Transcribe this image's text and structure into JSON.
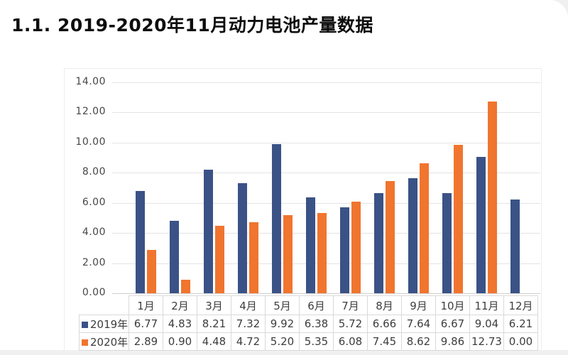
{
  "page": {
    "section_title": "1.1. 2019-2020年11月动力电池产量数据"
  },
  "chart_data": {
    "type": "bar",
    "title": "1.1. 2019-2020年11月动力电池产量数据",
    "categories": [
      "1月",
      "2月",
      "3月",
      "4月",
      "5月",
      "6月",
      "7月",
      "8月",
      "9月",
      "10月",
      "11月",
      "12月"
    ],
    "series": [
      {
        "name": "2019年",
        "color": "#3a5286",
        "values": [
          6.77,
          4.83,
          8.21,
          7.32,
          9.92,
          6.38,
          5.72,
          6.66,
          7.64,
          6.67,
          9.04,
          6.21
        ]
      },
      {
        "name": "2020年",
        "color": "#f0752e",
        "values": [
          2.89,
          0.9,
          4.48,
          4.72,
          5.2,
          5.35,
          6.08,
          7.45,
          8.62,
          9.86,
          12.73,
          0.0
        ]
      }
    ],
    "xlabel": "",
    "ylabel": "",
    "ylim": [
      0,
      14
    ],
    "ytick_step": 2,
    "yticks": [
      "14.00",
      "12.00",
      "10.00",
      "8.00",
      "6.00",
      "4.00",
      "2.00",
      "0.00"
    ],
    "grid": true,
    "legend_position": "data-table-left",
    "data_table_shown": true,
    "value_format_decimals": 2
  }
}
